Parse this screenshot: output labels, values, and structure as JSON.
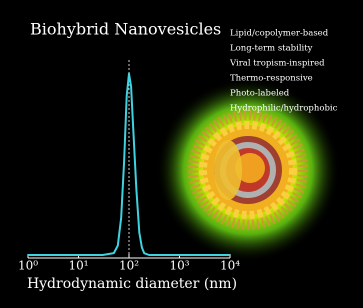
{
  "chart_data": {
    "type": "line",
    "title": "Biohybrid Nanovesicles",
    "features": [
      "Lipid/copolymer-based",
      "Long-term stability",
      "Viral tropism-inspired",
      "Thermo-responsive",
      "Photo-labeled",
      "Hydrophilic/hydrophobic"
    ],
    "x_label": "Hydrodynamic diameter (nm)",
    "log_x": true,
    "xlim": [
      1,
      10000
    ],
    "xticks": [
      {
        "value": 1,
        "label": "10⁰"
      },
      {
        "value": 10,
        "label": "10¹"
      },
      {
        "value": 100,
        "label": "10²"
      },
      {
        "value": 1000,
        "label": "10³"
      },
      {
        "value": 10000,
        "label": "10⁴"
      }
    ],
    "ylim": [
      0,
      1
    ],
    "reference_line_x": 100,
    "x": [
      1,
      10,
      30,
      50,
      60,
      70,
      80,
      90,
      100,
      110,
      120,
      140,
      160,
      180,
      200,
      250,
      1000,
      10000
    ],
    "series": [
      {
        "color": "#3fd3e0",
        "values": [
          0,
          0,
          0,
          0.01,
          0.05,
          0.2,
          0.5,
          0.85,
          0.97,
          0.9,
          0.7,
          0.35,
          0.12,
          0.04,
          0.01,
          0,
          0,
          0
        ]
      }
    ]
  }
}
